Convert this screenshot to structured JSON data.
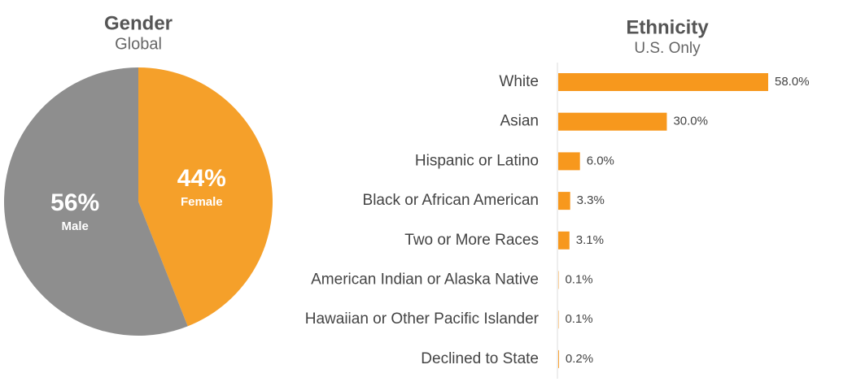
{
  "chart_data": [
    {
      "type": "pie",
      "title": "Gender",
      "subtitle": "Global",
      "categories": [
        "Female",
        "Male"
      ],
      "values": [
        44,
        56
      ],
      "value_labels": [
        "44%",
        "56%"
      ],
      "colors": [
        "#f5a02a",
        "#8e8e8e"
      ]
    },
    {
      "type": "bar",
      "title": "Ethnicity",
      "subtitle": "U.S. Only",
      "categories": [
        "White",
        "Asian",
        "Hispanic or Latino",
        "Black or African American",
        "Two or More Races",
        "American Indian or Alaska Native",
        "Hawaiian or Other Pacific Islander",
        "Declined to State"
      ],
      "values": [
        58.0,
        30.0,
        6.0,
        3.3,
        3.1,
        0.1,
        0.1,
        0.2
      ],
      "value_labels": [
        "58.0%",
        "30.0%",
        "6.0%",
        "3.3%",
        "3.1%",
        "0.1%",
        "0.1%",
        "0.2%"
      ],
      "color": "#f7981d"
    }
  ]
}
